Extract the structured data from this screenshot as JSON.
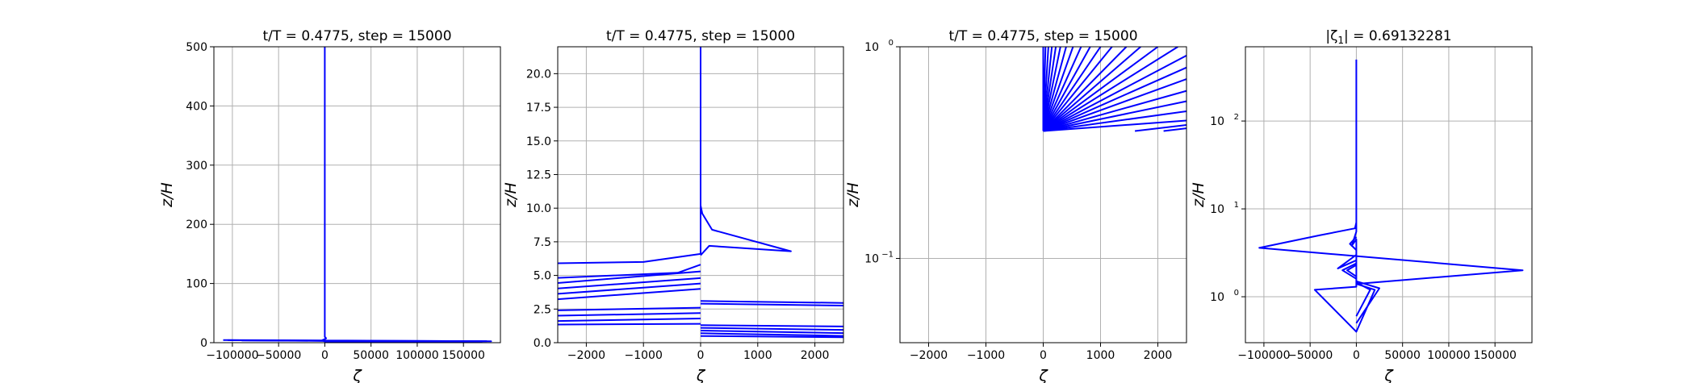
{
  "colors": {
    "series": "#0000ff",
    "grid": "#b0b0b0",
    "axes": "#000000",
    "background": "#ffffff"
  },
  "chart_data": [
    {
      "type": "line",
      "title": "t/T = 0.4775, step = 15000",
      "xlabel": "ζ",
      "ylabel": "z/H",
      "xlim": [
        -120000,
        190000
      ],
      "ylim": [
        0,
        500
      ],
      "yscale": "linear",
      "grid": true,
      "xticks": [
        {
          "v": -100000,
          "label": "−100000"
        },
        {
          "v": -50000,
          "label": "−50000"
        },
        {
          "v": 0,
          "label": "0"
        },
        {
          "v": 50000,
          "label": "50000"
        },
        {
          "v": 100000,
          "label": "100000"
        },
        {
          "v": 150000,
          "label": "150000"
        }
      ],
      "yticks": [
        {
          "v": 0,
          "label": "0"
        },
        {
          "v": 100,
          "label": "100"
        },
        {
          "v": 200,
          "label": "200"
        },
        {
          "v": 300,
          "label": "300"
        },
        {
          "v": 400,
          "label": "400"
        },
        {
          "v": 500,
          "label": "500"
        }
      ],
      "series": [
        {
          "points": [
            [
              -110000,
              4.5
            ],
            [
              0,
              3.8
            ],
            [
              180000,
              2.4
            ],
            [
              0,
              2.0
            ],
            [
              -3000,
              4.0
            ],
            [
              0,
              6.0
            ],
            [
              1500,
              7.5
            ],
            [
              0,
              10
            ],
            [
              0,
              100
            ],
            [
              0,
              300
            ],
            [
              0,
              500
            ]
          ]
        },
        {
          "points": [
            [
              -105000,
              4.2
            ],
            [
              0,
              3.2
            ],
            [
              175000,
              2.6
            ],
            [
              0,
              1.5
            ]
          ]
        },
        {
          "points": [
            [
              -90000,
              3.8
            ],
            [
              0,
              3.0
            ],
            [
              170000,
              2.2
            ],
            [
              0,
              1.0
            ]
          ]
        }
      ]
    },
    {
      "type": "line",
      "title": "t/T = 0.4775, step = 15000",
      "xlabel": "ζ",
      "ylabel": "z/H",
      "xlim": [
        -2500,
        2500
      ],
      "ylim": [
        0,
        22
      ],
      "yscale": "linear",
      "grid": true,
      "xticks": [
        {
          "v": -2000,
          "label": "−2000"
        },
        {
          "v": -1000,
          "label": "−1000"
        },
        {
          "v": 0,
          "label": "0"
        },
        {
          "v": 1000,
          "label": "1000"
        },
        {
          "v": 2000,
          "label": "2000"
        }
      ],
      "yticks": [
        {
          "v": 0,
          "label": "0.0"
        },
        {
          "v": 2.5,
          "label": "2.5"
        },
        {
          "v": 5,
          "label": "5.0"
        },
        {
          "v": 7.5,
          "label": "7.5"
        },
        {
          "v": 10,
          "label": "10.0"
        },
        {
          "v": 12.5,
          "label": "12.5"
        },
        {
          "v": 15,
          "label": "15.0"
        },
        {
          "v": 17.5,
          "label": "17.5"
        },
        {
          "v": 20,
          "label": "20.0"
        }
      ],
      "series": [
        {
          "points": [
            [
              -2600,
              5.9
            ],
            [
              -1000,
              6.0
            ],
            [
              0,
              6.6
            ],
            [
              0,
              9.8
            ],
            [
              0,
              22
            ]
          ]
        },
        {
          "points": [
            [
              0,
              10.2
            ],
            [
              30,
              9.6
            ],
            [
              200,
              8.4
            ],
            [
              1580,
              6.8
            ],
            [
              150,
              7.2
            ],
            [
              0,
              6.5
            ]
          ]
        },
        {
          "points": [
            [
              -2600,
              4.8
            ],
            [
              -400,
              5.2
            ],
            [
              0,
              5.8
            ]
          ]
        },
        {
          "points": [
            [
              -2600,
              4.4
            ],
            [
              0,
              5.3
            ]
          ]
        },
        {
          "points": [
            [
              -2600,
              4.0
            ],
            [
              0,
              4.8
            ]
          ]
        },
        {
          "points": [
            [
              -2600,
              3.6
            ],
            [
              0,
              4.4
            ]
          ]
        },
        {
          "points": [
            [
              -2600,
              3.2
            ],
            [
              0,
              4.0
            ]
          ]
        },
        {
          "points": [
            [
              -2600,
              2.4
            ],
            [
              0,
              2.6
            ]
          ]
        },
        {
          "points": [
            [
              -2600,
              2.0
            ],
            [
              0,
              2.2
            ]
          ]
        },
        {
          "points": [
            [
              -2600,
              1.6
            ],
            [
              0,
              1.8
            ]
          ]
        },
        {
          "points": [
            [
              -2600,
              1.35
            ],
            [
              0,
              1.4
            ]
          ]
        },
        {
          "points": [
            [
              0,
              3.1
            ],
            [
              2600,
              2.95
            ]
          ]
        },
        {
          "points": [
            [
              0,
              2.9
            ],
            [
              2600,
              2.75
            ]
          ]
        },
        {
          "points": [
            [
              0,
              1.3
            ],
            [
              2600,
              1.2
            ]
          ]
        },
        {
          "points": [
            [
              0,
              1.1
            ],
            [
              2600,
              0.95
            ]
          ]
        },
        {
          "points": [
            [
              0,
              0.9
            ],
            [
              2600,
              0.7
            ]
          ]
        },
        {
          "points": [
            [
              0,
              0.7
            ],
            [
              2600,
              0.5
            ]
          ]
        },
        {
          "points": [
            [
              0,
              0.5
            ],
            [
              2600,
              0.4
            ]
          ]
        }
      ]
    },
    {
      "type": "line",
      "title": "t/T = 0.4775, step = 15000",
      "xlabel": "ζ",
      "ylabel": "z/H",
      "xlim": [
        -2500,
        2500
      ],
      "ylim": [
        0.04,
        1
      ],
      "yscale": "log",
      "grid": true,
      "xticks": [
        {
          "v": -2000,
          "label": "−2000"
        },
        {
          "v": -1000,
          "label": "−1000"
        },
        {
          "v": 0,
          "label": "0"
        },
        {
          "v": 1000,
          "label": "1000"
        },
        {
          "v": 2000,
          "label": "2000"
        }
      ],
      "yticks": [
        {
          "v": 0.1,
          "label": "10",
          "exp": "−1"
        },
        {
          "v": 1,
          "label": "10",
          "exp": "0"
        }
      ],
      "series": [
        {
          "points": [
            [
              0,
              0.4
            ],
            [
              0,
              1
            ]
          ]
        },
        {
          "points": [
            [
              0,
              0.4
            ],
            [
              40,
              1
            ]
          ]
        },
        {
          "points": [
            [
              0,
              0.4
            ],
            [
              90,
              1
            ]
          ]
        },
        {
          "points": [
            [
              0,
              0.4
            ],
            [
              150,
              1
            ]
          ]
        },
        {
          "points": [
            [
              0,
              0.4
            ],
            [
              220,
              1
            ]
          ]
        },
        {
          "points": [
            [
              0,
              0.4
            ],
            [
              300,
              1
            ]
          ]
        },
        {
          "points": [
            [
              0,
              0.4
            ],
            [
              400,
              1
            ]
          ]
        },
        {
          "points": [
            [
              0,
              0.4
            ],
            [
              520,
              1
            ]
          ]
        },
        {
          "points": [
            [
              0,
              0.4
            ],
            [
              660,
              1
            ]
          ]
        },
        {
          "points": [
            [
              0,
              0.4
            ],
            [
              820,
              1
            ]
          ]
        },
        {
          "points": [
            [
              0,
              0.4
            ],
            [
              1000,
              1
            ]
          ]
        },
        {
          "points": [
            [
              0,
              0.4
            ],
            [
              1200,
              1
            ]
          ]
        },
        {
          "points": [
            [
              0,
              0.4
            ],
            [
              1450,
              1
            ]
          ]
        },
        {
          "points": [
            [
              0,
              0.4
            ],
            [
              1700,
              1
            ]
          ]
        },
        {
          "points": [
            [
              0,
              0.4
            ],
            [
              2000,
              1
            ]
          ]
        },
        {
          "points": [
            [
              0,
              0.4
            ],
            [
              2350,
              1
            ]
          ]
        },
        {
          "points": [
            [
              0,
              0.4
            ],
            [
              2600,
              0.94
            ]
          ]
        },
        {
          "points": [
            [
              0,
              0.4
            ],
            [
              2600,
              0.82
            ]
          ]
        },
        {
          "points": [
            [
              0,
              0.4
            ],
            [
              2600,
              0.72
            ]
          ]
        },
        {
          "points": [
            [
              0,
              0.4
            ],
            [
              2600,
              0.63
            ]
          ]
        },
        {
          "points": [
            [
              0,
              0.4
            ],
            [
              2600,
              0.56
            ]
          ]
        },
        {
          "points": [
            [
              0,
              0.4
            ],
            [
              2600,
              0.5
            ]
          ]
        },
        {
          "points": [
            [
              0,
              0.4
            ],
            [
              2600,
              0.45
            ]
          ]
        },
        {
          "points": [
            [
              1600,
              0.4
            ],
            [
              2600,
              0.43
            ]
          ]
        },
        {
          "points": [
            [
              2100,
              0.4
            ],
            [
              2600,
              0.415
            ]
          ]
        }
      ]
    },
    {
      "type": "line",
      "title": "|ζ",
      "title_sub": "1",
      "title_tail": "| = 0.69132281",
      "xlabel": "ζ",
      "ylabel": "z/H",
      "xlim": [
        -120000,
        190000
      ],
      "ylim": [
        0.3,
        700
      ],
      "yscale": "log",
      "grid": true,
      "xticks": [
        {
          "v": -100000,
          "label": "−100000"
        },
        {
          "v": -50000,
          "label": "−50000"
        },
        {
          "v": 0,
          "label": "0"
        },
        {
          "v": 50000,
          "label": "50000"
        },
        {
          "v": 100000,
          "label": "100000"
        },
        {
          "v": 150000,
          "label": "150000"
        }
      ],
      "yticks": [
        {
          "v": 1,
          "label": "10",
          "exp": "0"
        },
        {
          "v": 10,
          "label": "10",
          "exp": "1"
        },
        {
          "v": 100,
          "label": "10",
          "exp": "2"
        }
      ],
      "series": [
        {
          "points": [
            [
              0,
              500
            ],
            [
              0,
              7
            ],
            [
              -1500,
              6
            ],
            [
              -40000,
              5
            ],
            [
              -105000,
              3.6
            ],
            [
              180000,
              2.0
            ],
            [
              0,
              1.4
            ],
            [
              20000,
              1.2
            ],
            [
              0,
              0.4
            ],
            [
              -45000,
              1.2
            ],
            [
              0,
              1.3
            ],
            [
              0,
              3
            ],
            [
              -20000,
              2.1
            ],
            [
              0,
              2.6
            ],
            [
              0,
              4.5
            ],
            [
              -5000,
              3.8
            ],
            [
              0,
              5.5
            ],
            [
              0,
              7
            ]
          ]
        },
        {
          "points": [
            [
              0,
              2.4
            ],
            [
              -15000,
              2.0
            ],
            [
              0,
              1.6
            ]
          ]
        },
        {
          "points": [
            [
              0,
              2.3
            ],
            [
              -10000,
              2.0
            ],
            [
              0,
              1.7
            ]
          ]
        },
        {
          "points": [
            [
              0,
              4.8
            ],
            [
              -7000,
              4.0
            ],
            [
              0,
              3.4
            ]
          ]
        },
        {
          "points": [
            [
              0,
              1.5
            ],
            [
              25000,
              1.25
            ],
            [
              0,
              0.5
            ]
          ]
        },
        {
          "points": [
            [
              0,
              1.45
            ],
            [
              15000,
              1.2
            ],
            [
              0,
              0.6
            ]
          ]
        }
      ]
    }
  ]
}
